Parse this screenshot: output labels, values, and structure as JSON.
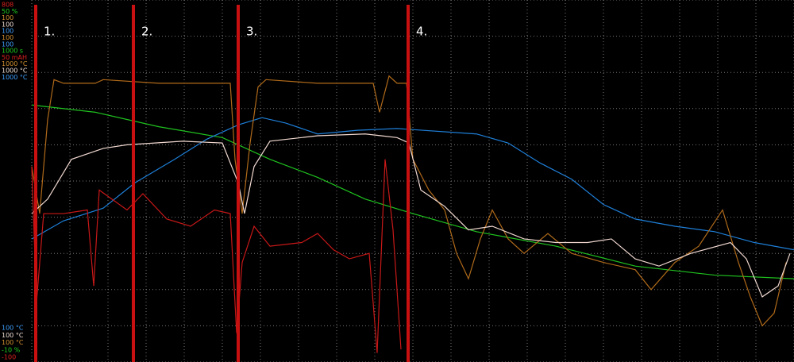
{
  "chart_data": {
    "type": "line",
    "background": "#000000",
    "grid": true,
    "xlim": [
      0,
      960
    ],
    "xticks": [
      0,
      48,
      96,
      144,
      192,
      240,
      288,
      336,
      384,
      432,
      480,
      528,
      576,
      624,
      672,
      720,
      768,
      816,
      864,
      912,
      960
    ],
    "ylim": [
      0,
      10
    ],
    "yticks": [
      0,
      1,
      2,
      3,
      4,
      5,
      6,
      7,
      8,
      9,
      10
    ],
    "scale_labels_top": [
      {
        "text": "808",
        "color": "#e02020"
      },
      {
        "text": "50 %",
        "color": "#20d020"
      },
      {
        "text": "100",
        "color": "#d09030"
      },
      {
        "text": "100",
        "color": "#f0e0d8"
      },
      {
        "text": "100",
        "color": "#40a0ff"
      },
      {
        "text": "100",
        "color": "#d09030"
      },
      {
        "text": "100",
        "color": "#40a0ff"
      },
      {
        "text": "1000 s",
        "color": "#20d020"
      },
      {
        "text": "50 mAH",
        "color": "#e02020"
      },
      {
        "text": "1000 °C",
        "color": "#d09030"
      },
      {
        "text": "1000 °C",
        "color": "#f0e0d8"
      },
      {
        "text": "1000 °C",
        "color": "#40a0ff"
      }
    ],
    "scale_labels_bottom": [
      {
        "text": "100 °C",
        "color": "#40a0ff"
      },
      {
        "text": "100 °C",
        "color": "#f0e0d8"
      },
      {
        "text": "100 °C",
        "color": "#d09030"
      },
      {
        "text": "-10 %",
        "color": "#20d020"
      },
      {
        "text": "-100",
        "color": "#e02020"
      }
    ],
    "markers": [
      {
        "label": "1.",
        "x": 5
      },
      {
        "label": "2.",
        "x": 128
      },
      {
        "label": "3.",
        "x": 260
      },
      {
        "label": "4.",
        "x": 474
      }
    ],
    "marker_color": "#c81010",
    "series": [
      {
        "color": "#1fc21f",
        "x": [
          0,
          80,
          160,
          240,
          300,
          360,
          420,
          480,
          560,
          660,
          760,
          860,
          960
        ],
        "values": [
          7.1,
          6.9,
          6.5,
          6.2,
          5.6,
          5.1,
          4.5,
          4.1,
          3.6,
          3.2,
          2.65,
          2.4,
          2.3
        ]
      },
      {
        "color": "#1e7fd8",
        "x": [
          0,
          40,
          90,
          130,
          180,
          220,
          260,
          290,
          320,
          360,
          410,
          460,
          560,
          600,
          640,
          680,
          720,
          760,
          810,
          860,
          910,
          960
        ],
        "values": [
          3.4,
          3.9,
          4.25,
          4.95,
          5.6,
          6.15,
          6.55,
          6.75,
          6.6,
          6.3,
          6.4,
          6.45,
          6.3,
          6.05,
          5.5,
          5.05,
          4.35,
          3.95,
          3.75,
          3.6,
          3.3,
          3.1
        ]
      },
      {
        "color": "#b06a1a",
        "x": [
          0,
          10,
          20,
          28,
          40,
          80,
          90,
          160,
          250,
          256,
          265,
          275,
          285,
          295,
          360,
          430,
          438,
          450,
          460,
          472,
          480,
          500,
          520,
          535,
          550,
          565,
          580,
          600,
          620,
          650,
          680,
          720,
          760,
          780,
          810,
          840,
          870,
          890,
          905,
          920,
          935,
          950
        ],
        "values": [
          5.4,
          4.1,
          6.7,
          7.8,
          7.7,
          7.7,
          7.8,
          7.7,
          7.7,
          5.6,
          4.1,
          6.05,
          7.6,
          7.8,
          7.7,
          7.7,
          6.9,
          7.9,
          7.7,
          7.7,
          5.6,
          4.75,
          4.2,
          3.0,
          2.3,
          3.4,
          4.2,
          3.4,
          3.0,
          3.55,
          3.0,
          2.75,
          2.55,
          2.0,
          2.75,
          3.2,
          4.2,
          2.75,
          1.8,
          1.0,
          1.35,
          2.75
        ]
      },
      {
        "color": "#f0d8d0",
        "x": [
          0,
          20,
          50,
          90,
          120,
          190,
          240,
          260,
          268,
          280,
          300,
          360,
          420,
          440,
          460,
          475,
          490,
          520,
          550,
          580,
          620,
          660,
          700,
          730,
          760,
          790,
          830,
          880,
          900,
          920,
          940,
          955
        ],
        "values": [
          4.1,
          4.5,
          5.6,
          5.9,
          6.0,
          6.1,
          6.05,
          4.95,
          4.1,
          5.4,
          6.1,
          6.25,
          6.3,
          6.25,
          6.2,
          6.05,
          4.75,
          4.3,
          3.65,
          3.75,
          3.4,
          3.3,
          3.3,
          3.4,
          2.85,
          2.65,
          3.0,
          3.3,
          2.85,
          1.8,
          2.1,
          3.0
        ]
      },
      {
        "color": "#c81818",
        "x": [
          0,
          6,
          15,
          40,
          70,
          78,
          85,
          120,
          140,
          170,
          200,
          230,
          250,
          258,
          265,
          280,
          300,
          340,
          360,
          380,
          400,
          425,
          435,
          445,
          455,
          465
        ],
        "values": [
          5.4,
          1.65,
          4.1,
          4.1,
          4.2,
          2.1,
          4.75,
          4.2,
          4.65,
          3.95,
          3.75,
          4.2,
          4.1,
          0.8,
          2.75,
          3.75,
          3.2,
          3.3,
          3.55,
          3.1,
          2.85,
          3.0,
          0.25,
          5.6,
          3.65,
          0.35
        ]
      }
    ]
  }
}
